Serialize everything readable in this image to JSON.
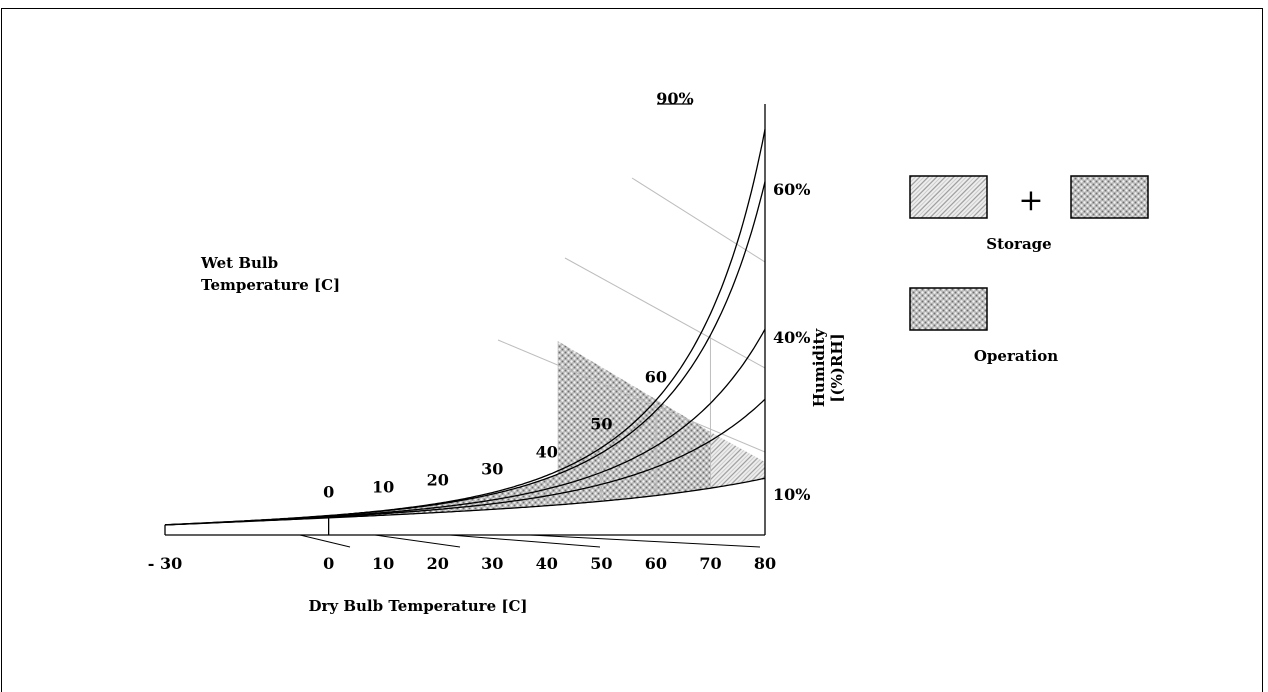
{
  "chart_data": {
    "type": "area",
    "title": "",
    "xlabel": "Dry Bulb Temperature [C]",
    "wet_bulb_label": [
      "Wet Bulb",
      "Temperature [C]"
    ],
    "humidity_label": [
      "Humidity",
      "[(%)RH]"
    ],
    "x_ticks": [
      "- 30",
      "0",
      "10",
      "20",
      "30",
      "40",
      "50",
      "60",
      "70",
      "80"
    ],
    "x_values": [
      -30,
      0,
      10,
      20,
      30,
      40,
      50,
      60,
      70,
      80
    ],
    "xlim": [
      -30,
      80
    ],
    "wet_bulb_ticks": [
      {
        "label": "0",
        "t": 0
      },
      {
        "label": "10",
        "t": 10
      },
      {
        "label": "20",
        "t": 20
      },
      {
        "label": "30",
        "t": 30
      },
      {
        "label": "40",
        "t": 40
      },
      {
        "label": "50",
        "t": 50
      },
      {
        "label": "60",
        "t": 60
      }
    ],
    "series": [
      {
        "name": "90%",
        "rh": 90
      },
      {
        "name": "60%",
        "rh": 60
      },
      {
        "name": "40%",
        "rh": 40
      },
      {
        "name": "10%",
        "rh": 10
      }
    ],
    "regions": [
      {
        "name": "Storage",
        "t_min": -30,
        "t_max": 80,
        "rh_min": 10,
        "rh_max": 90
      },
      {
        "name": "Operation",
        "t_min": 0,
        "t_max": 70,
        "rh_min": 10,
        "rh_max": 90,
        "max_wet_bulb": 40
      }
    ],
    "legend": {
      "plus": "+",
      "storage_label": "Storage",
      "operation_label": "Operation"
    }
  }
}
